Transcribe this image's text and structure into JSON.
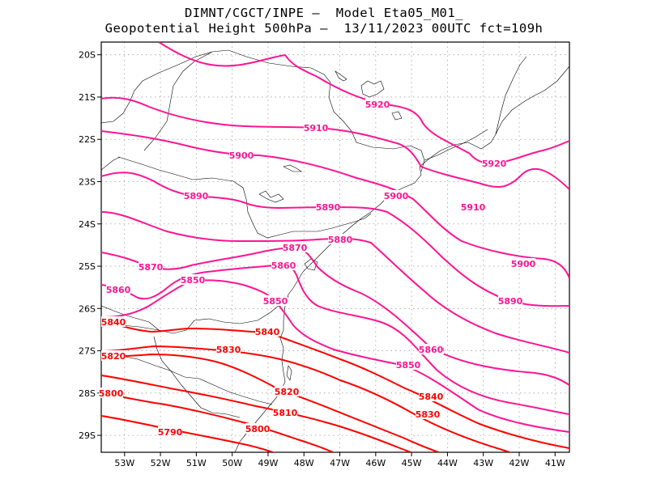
{
  "header": {
    "line1": "DIMNT/CGCT/INPE —  Model Eta05_M01_",
    "line2": "Geopotential Height 500hPa —  13/11/2023 00UTC fct=109h"
  },
  "map": {
    "variable": "Geopotential Height 500hPa",
    "lon_range": [
      -53.65,
      -40.6
    ],
    "lat_range": [
      -29.4,
      -19.7
    ],
    "lon_ticks": [
      "53W",
      "52W",
      "51W",
      "50W",
      "49W",
      "48W",
      "47W",
      "46W",
      "45W",
      "44W",
      "43W",
      "42W",
      "41W"
    ],
    "lat_ticks": [
      "20S",
      "21S",
      "22S",
      "23S",
      "24S",
      "25S",
      "26S",
      "27S",
      "28S",
      "29S"
    ],
    "colors": {
      "high": "#ff1493",
      "low": "#ff0000",
      "coast": "#000000",
      "grid": "#a0a0a0"
    },
    "contours": [
      {
        "value": 5920,
        "label": "5920"
      },
      {
        "value": 5910,
        "label": "5910"
      },
      {
        "value": 5900,
        "label": "5900"
      },
      {
        "value": 5890,
        "label": "5890"
      },
      {
        "value": 5880,
        "label": "5880"
      },
      {
        "value": 5870,
        "label": "5870"
      },
      {
        "value": 5860,
        "label": "5860"
      },
      {
        "value": 5850,
        "label": "5850"
      },
      {
        "value": 5840,
        "label": "5840"
      },
      {
        "value": 5830,
        "label": "5830"
      },
      {
        "value": 5820,
        "label": "5820"
      },
      {
        "value": 5810,
        "label": "5810"
      },
      {
        "value": 5800,
        "label": "5800"
      },
      {
        "value": 5790,
        "label": "5790"
      }
    ]
  }
}
